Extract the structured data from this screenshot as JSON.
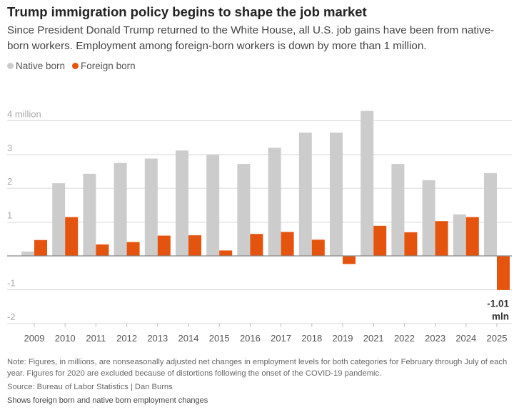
{
  "title": "Trump immigration policy begins to shape the job market",
  "subtitle": "Since President Donald Trump returned to the White House, all U.S. job gains have been from native-born workers. Employment among foreign-born workers is down by more than 1 million.",
  "note": "Note: Figures, in millions, are nonseasonally adjusted net changes in employment levels for both categories for February through July of each year. Figures for 2020 are excluded because of distortions following the onset of the COVID-19 pandemic.",
  "source": "Source: Bureau of Labor Statistics | Dan Burns",
  "alt_text": "Shows foreign born and native born employment changes",
  "colors": {
    "native": "#cccccc",
    "foreign": "#e5540f"
  },
  "chart_data": {
    "type": "bar",
    "categories": [
      "2009",
      "2010",
      "2011",
      "2012",
      "2013",
      "2014",
      "2015",
      "2016",
      "2017",
      "2018",
      "2019",
      "2021",
      "2022",
      "2023",
      "2024",
      "2025"
    ],
    "series": [
      {
        "name": "Native born",
        "color": "#cccccc",
        "values": [
          0.13,
          2.15,
          2.43,
          2.75,
          2.88,
          3.12,
          2.99,
          2.72,
          3.2,
          3.65,
          3.65,
          4.29,
          2.72,
          2.24,
          1.23,
          2.45
        ]
      },
      {
        "name": "Foreign born",
        "color": "#e5540f",
        "values": [
          0.47,
          1.15,
          0.34,
          0.41,
          0.6,
          0.61,
          0.16,
          0.65,
          0.71,
          0.48,
          -0.24,
          0.89,
          0.7,
          1.03,
          1.15,
          -1.01
        ]
      }
    ],
    "ylim": [
      -2,
      4.3
    ],
    "yticks": [
      4,
      3,
      2,
      1,
      0,
      -1,
      -2
    ],
    "ytick_labels": [
      "4 million",
      "3",
      "2",
      "1",
      "",
      "-1",
      "-2"
    ],
    "annotation": {
      "category": "2025",
      "series": "Foreign born",
      "line1": "-1.01",
      "line2": "mln"
    },
    "grid": true,
    "legend": "top-left"
  }
}
